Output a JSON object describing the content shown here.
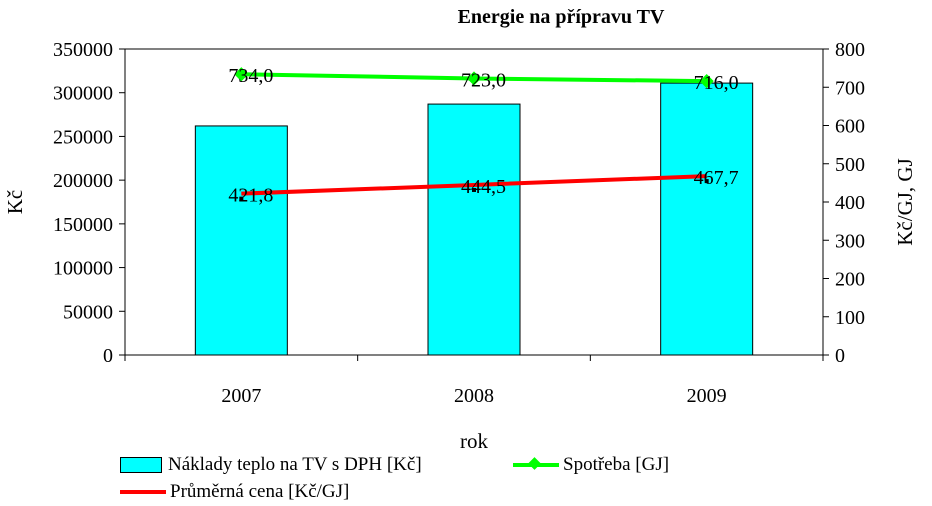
{
  "chart_data": {
    "type": "bar",
    "title": "Energie na přípravu TV",
    "xlabel": "rok",
    "ylabel": "Kč",
    "y2label": "Kč/GJ, GJ",
    "categories": [
      "2007",
      "2008",
      "2009"
    ],
    "ylim": [
      0,
      350000
    ],
    "y2lim": [
      0,
      800
    ],
    "yticks": [
      "0",
      "50000",
      "100000",
      "150000",
      "200000",
      "250000",
      "300000",
      "350000"
    ],
    "y2ticks": [
      "0",
      "100",
      "200",
      "300",
      "400",
      "500",
      "600",
      "700",
      "800"
    ],
    "series": [
      {
        "name": "Náklady teplo na TV s DPH [Kč]",
        "kind": "bar",
        "axis": "left",
        "color": "#00ffff",
        "values": [
          262000,
          287000,
          311000
        ]
      },
      {
        "name": "Spotřeba [GJ]",
        "kind": "line",
        "axis": "right",
        "color": "#00ff00",
        "marker": "diamond",
        "values": [
          734.0,
          723.0,
          716.0
        ],
        "labels": [
          "734,0",
          "723,0",
          "716,0"
        ]
      },
      {
        "name": "Průměrná cena [Kč/GJ]",
        "kind": "line",
        "axis": "right",
        "color": "#ff0000",
        "marker": "none",
        "values": [
          421.8,
          444.5,
          467.7
        ],
        "labels": [
          "421,8",
          "444,5",
          "467,7"
        ]
      }
    ],
    "legend": "bottom"
  }
}
